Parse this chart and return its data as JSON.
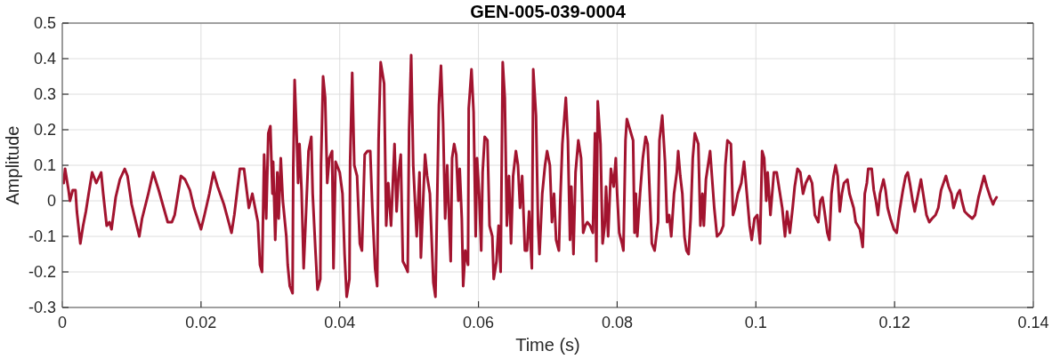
{
  "chart_data": {
    "type": "line",
    "title": "GEN-005-039-0004",
    "xlabel": "Time (s)",
    "ylabel": "Amplitude",
    "color": "#a2142f",
    "xlim": [
      0,
      0.14
    ],
    "xticks": [
      0,
      0.02,
      0.04,
      0.06,
      0.08,
      0.1,
      0.12,
      0.14
    ],
    "ylim": [
      -0.3,
      0.5
    ],
    "yticks": [
      -0.3,
      -0.2,
      -0.1,
      0,
      0.1,
      0.2,
      0.3,
      0.4,
      0.5
    ],
    "grid": true,
    "x": [
      0.0002,
      0.0004,
      0.0009,
      0.0011,
      0.0015,
      0.0019,
      0.0021,
      0.0026,
      0.003,
      0.0034,
      0.0038,
      0.0043,
      0.0049,
      0.0056,
      0.0059,
      0.0064,
      0.0068,
      0.0071,
      0.0077,
      0.0083,
      0.009,
      0.0094,
      0.01,
      0.0111,
      0.0115,
      0.0124,
      0.0131,
      0.0139,
      0.0152,
      0.0158,
      0.0162,
      0.0171,
      0.0177,
      0.0184,
      0.019,
      0.02,
      0.0205,
      0.0212,
      0.0218,
      0.0224,
      0.0233,
      0.0244,
      0.0248,
      0.0256,
      0.0262,
      0.0269,
      0.0274,
      0.0282,
      0.0285,
      0.0288,
      0.0291,
      0.0294,
      0.0297,
      0.03,
      0.0303,
      0.0304,
      0.0307,
      0.031,
      0.0312,
      0.0315,
      0.0318,
      0.0323,
      0.0325,
      0.0328,
      0.0332,
      0.0333,
      0.0335,
      0.0338,
      0.034,
      0.0342,
      0.0345,
      0.0348,
      0.0353,
      0.0355,
      0.0359,
      0.0361,
      0.0365,
      0.0368,
      0.0372,
      0.0373,
      0.0376,
      0.0379,
      0.0382,
      0.0385,
      0.0389,
      0.0391,
      0.0394,
      0.04,
      0.0404,
      0.0407,
      0.041,
      0.0414,
      0.0415,
      0.0418,
      0.0421,
      0.0425,
      0.0429,
      0.0432,
      0.0436,
      0.044,
      0.0444,
      0.0447,
      0.0451,
      0.0454,
      0.0456,
      0.0459,
      0.0464,
      0.0467,
      0.047,
      0.0474,
      0.0479,
      0.0482,
      0.0485,
      0.0488,
      0.0491,
      0.0496,
      0.0498,
      0.05,
      0.0503,
      0.0506,
      0.0511,
      0.0515,
      0.0517,
      0.0523,
      0.0526,
      0.053,
      0.0535,
      0.0538,
      0.0543,
      0.0546,
      0.0549,
      0.0552,
      0.0555,
      0.0558,
      0.056,
      0.0562,
      0.0565,
      0.0568,
      0.0571,
      0.0573,
      0.0576,
      0.0578,
      0.0581,
      0.0585,
      0.0586,
      0.059,
      0.0593,
      0.0596,
      0.0598,
      0.0601,
      0.0604,
      0.0606,
      0.0609,
      0.0613,
      0.0616,
      0.062,
      0.0622,
      0.0626,
      0.0629,
      0.0632,
      0.0635,
      0.0638,
      0.0641,
      0.0644,
      0.0647,
      0.065,
      0.0654,
      0.0657,
      0.066,
      0.0663,
      0.0667,
      0.067,
      0.0673,
      0.0677,
      0.0679,
      0.0683,
      0.0686,
      0.0688,
      0.0692,
      0.0696,
      0.0699,
      0.0703,
      0.0706,
      0.0709,
      0.0712,
      0.0716,
      0.0718,
      0.0721,
      0.0726,
      0.0729,
      0.0732,
      0.0734,
      0.0737,
      0.074,
      0.0744,
      0.0748,
      0.0751,
      0.0754,
      0.0757,
      0.0761,
      0.0765,
      0.0768,
      0.077,
      0.0772,
      0.0776,
      0.0779,
      0.0782,
      0.0784,
      0.0787,
      0.0791,
      0.0795,
      0.0798,
      0.08,
      0.0803,
      0.0807,
      0.0809,
      0.0812,
      0.0814,
      0.0823,
      0.0825,
      0.0827,
      0.0829,
      0.0833,
      0.0837,
      0.0841,
      0.0844,
      0.0847,
      0.085,
      0.0854,
      0.0857,
      0.0859,
      0.0861,
      0.0865,
      0.0869,
      0.0872,
      0.0875,
      0.0878,
      0.0882,
      0.0886,
      0.0888,
      0.0891,
      0.0894,
      0.0897,
      0.09,
      0.0903,
      0.0906,
      0.0909,
      0.0912,
      0.0917,
      0.092,
      0.0923,
      0.0925,
      0.0928,
      0.0934,
      0.0937,
      0.094,
      0.0944,
      0.0949,
      0.0953,
      0.0956,
      0.0959,
      0.0964,
      0.0967,
      0.097,
      0.0974,
      0.0979,
      0.0983,
      0.0987,
      0.0991,
      0.0994,
      0.0998,
      0.1002,
      0.1006,
      0.1009,
      0.1012,
      0.1015,
      0.1017,
      0.1021,
      0.1026,
      0.103,
      0.1034,
      0.1038,
      0.1042,
      0.1045,
      0.1049,
      0.1053,
      0.1056,
      0.106,
      0.1064,
      0.1068,
      0.1072,
      0.1077,
      0.1081,
      0.1085,
      0.109,
      0.1093,
      0.1096,
      0.1099,
      0.1103,
      0.1106,
      0.1109,
      0.1112,
      0.1115,
      0.1118,
      0.1121,
      0.1124,
      0.1127,
      0.1132,
      0.1135,
      0.1138,
      0.1141,
      0.1144,
      0.1147,
      0.115,
      0.1154,
      0.1157,
      0.116,
      0.1162,
      0.1167,
      0.117,
      0.1173,
      0.1176,
      0.1179,
      0.1184,
      0.1187,
      0.119,
      0.1194,
      0.1199,
      0.1203,
      0.1207,
      0.1212,
      0.1216,
      0.1219,
      0.1222,
      0.1226,
      0.1229,
      0.1233,
      0.1238,
      0.1242,
      0.1246,
      0.125,
      0.1254,
      0.1259,
      0.1263,
      0.1267,
      0.1274,
      0.1278,
      0.1282,
      0.1285,
      0.1291,
      0.1294,
      0.1297,
      0.1301,
      0.1306,
      0.1312,
      0.1316,
      0.1321,
      0.1325,
      0.1329,
      0.1333,
      0.1338,
      0.1342,
      0.1344,
      0.1347
    ],
    "values": [
      0.05,
      0.09,
      0.03,
      0,
      0.03,
      0.03,
      -0.03,
      -0.12,
      -0.07,
      -0.03,
      0.02,
      0.08,
      0.05,
      0.08,
      0.02,
      -0.07,
      -0.06,
      -0.08,
      0.01,
      0.06,
      0.09,
      0.07,
      -0.01,
      -0.1,
      -0.05,
      0.02,
      0.08,
      0.03,
      -0.06,
      -0.06,
      -0.04,
      0.07,
      0.06,
      0.03,
      -0.02,
      -0.08,
      -0.04,
      0.02,
      0.08,
      0.04,
      -0.01,
      -0.09,
      -0.04,
      0.09,
      0.09,
      -0.02,
      0.02,
      -0.06,
      -0.18,
      -0.2,
      0.13,
      -0.05,
      0.19,
      0.21,
      0.02,
      0.11,
      -0.11,
      0.08,
      -0.05,
      0.12,
      0,
      -0.1,
      -0.18,
      -0.24,
      -0.26,
      0.09,
      0.34,
      0.18,
      0.05,
      0.16,
      0.03,
      -0.19,
      0.04,
      0.14,
      0.18,
      0.02,
      -0.14,
      -0.25,
      -0.22,
      0.1,
      0.35,
      0.29,
      0.05,
      0.12,
      0.14,
      -0.19,
      0.11,
      0.08,
      0.02,
      -0.15,
      -0.27,
      -0.22,
      0.11,
      0.36,
      0.1,
      0.07,
      -0.12,
      -0.14,
      0.13,
      0.14,
      0.14,
      -0.02,
      -0.19,
      -0.24,
      0.17,
      0.39,
      0.33,
      -0.07,
      0.05,
      -0.07,
      0.16,
      -0.03,
      0.08,
      0.13,
      -0.17,
      -0.19,
      -0.2,
      0.2,
      0.41,
      0.1,
      -0.1,
      0.08,
      -0.16,
      0.13,
      0.07,
      0.02,
      -0.23,
      -0.27,
      0.27,
      0.38,
      0.22,
      -0.05,
      0.1,
      -0.07,
      -0.17,
      0.12,
      0.16,
      0.13,
      0,
      0.09,
      -0.05,
      -0.24,
      -0.14,
      -0.18,
      0.26,
      0.37,
      0.25,
      -0.1,
      0.12,
      0.02,
      -0.14,
      0.08,
      0.18,
      0.17,
      -0.07,
      -0.1,
      -0.22,
      -0.17,
      -0.07,
      -0.2,
      0.39,
      0.29,
      -0.07,
      0.07,
      -0.12,
      0.07,
      0.14,
      0.1,
      -0.02,
      0.07,
      -0.14,
      -0.14,
      -0.03,
      -0.19,
      0.37,
      0.24,
      -0.07,
      -0.15,
      0.02,
      0.1,
      0.14,
      0.1,
      -0.06,
      0.02,
      -0.11,
      -0.14,
      0,
      0.16,
      0.29,
      0.17,
      -0.11,
      0.04,
      -0.15,
      0.08,
      0.17,
      0.12,
      -0.09,
      -0.07,
      -0.06,
      -0.07,
      -0.09,
      0.19,
      -0.17,
      0.28,
      0.16,
      -0.12,
      -0.07,
      0.04,
      -0.1,
      0.09,
      0.04,
      0.12,
      0.02,
      -0.09,
      -0.12,
      -0.14,
      0.17,
      0.23,
      0.17,
      -0.09,
      0.02,
      -0.1,
      0.02,
      0.12,
      0.18,
      0.16,
      0.02,
      -0.12,
      -0.14,
      -0.09,
      -0.06,
      0.17,
      0.24,
      0.11,
      -0.06,
      -0.04,
      -0.1,
      0.02,
      0.08,
      0.14,
      0.07,
      0.02,
      -0.1,
      -0.14,
      -0.15,
      -0.05,
      0.12,
      0.19,
      0.16,
      -0.07,
      0.02,
      -0.07,
      0.06,
      0.14,
      0.06,
      -0.02,
      -0.1,
      -0.09,
      -0.07,
      0.1,
      0.17,
      0.16,
      -0.04,
      -0.02,
      0.02,
      0.05,
      0.11,
      0.02,
      -0.07,
      -0.11,
      -0.05,
      -0.04,
      -0.12,
      0.14,
      0.12,
      0,
      0.08,
      -0.04,
      0.08,
      0.08,
      0.03,
      -0.02,
      -0.1,
      -0.03,
      -0.09,
      -0.02,
      0.04,
      0.09,
      0.08,
      0.02,
      0.05,
      0.07,
      0.05,
      -0.04,
      -0.06,
      0,
      0.01,
      -0.03,
      -0.09,
      -0.11,
      0.02,
      0.07,
      0.1,
      0.07,
      -0.03,
      0.02,
      0.05,
      0.06,
      0.02,
      0,
      -0.02,
      -0.06,
      -0.07,
      -0.08,
      -0.13,
      0.02,
      0.05,
      0.09,
      0.09,
      0.03,
      0,
      -0.04,
      0.02,
      0.06,
      0.03,
      -0.02,
      -0.05,
      -0.08,
      -0.09,
      -0.03,
      0.03,
      0.07,
      0.08,
      0.05,
      0,
      -0.03,
      0.01,
      0.06,
      0.01,
      -0.04,
      -0.06,
      -0.05,
      -0.04,
      -0.02,
      0.03,
      0.07,
      0.04,
      0.02,
      -0.02,
      0.02,
      0.03,
      0,
      -0.03,
      -0.04,
      -0.05,
      -0.04,
      0.01,
      0.04,
      0.07,
      0.04,
      0.01,
      -0.01,
      0,
      0.01
    ]
  }
}
